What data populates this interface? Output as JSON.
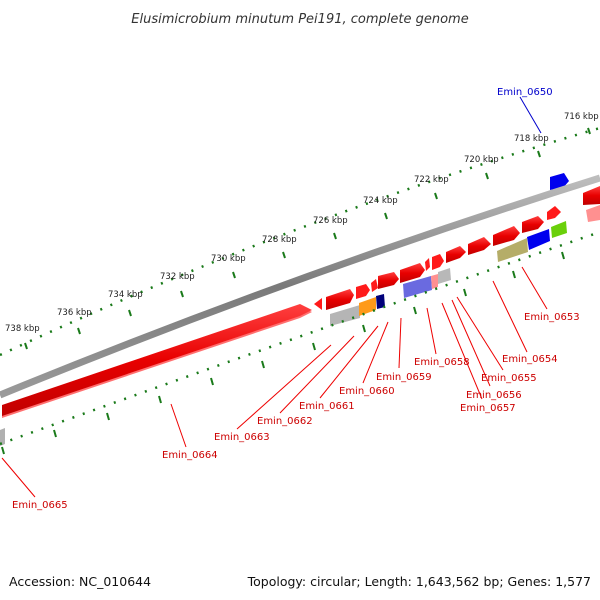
{
  "title": "Elusimicrobium minutum Pei191, complete genome",
  "footer": {
    "accession": "Accession: NC_010644",
    "topology": "Topology: circular; Length: 1,643,562 bp; Genes: 1,577"
  },
  "ticks": [
    "716 kbp",
    "718 kbp",
    "720 kbp",
    "722 kbp",
    "724 kbp",
    "726 kbp",
    "728 kbp",
    "730 kbp",
    "732 kbp",
    "734 kbp",
    "736 kbp",
    "738 kbp"
  ],
  "genes": {
    "emin_0650": "Emin_0650",
    "emin_0653": "Emin_0653",
    "emin_0654": "Emin_0654",
    "emin_0655": "Emin_0655",
    "emin_0656": "Emin_0656",
    "emin_0657": "Emin_0657",
    "emin_0658": "Emin_0658",
    "emin_0659": "Emin_0659",
    "emin_0660": "Emin_0660",
    "emin_0661": "Emin_0661",
    "emin_0662": "Emin_0662",
    "emin_0663": "Emin_0663",
    "emin_0664": "Emin_0664",
    "emin_0665": "Emin_0665"
  },
  "colors": {
    "forward": "#ff0000",
    "reverse_shadow": "#ff8080",
    "blue": "#0000ff",
    "olive": "#b5b06a",
    "orange": "#ff9a1a",
    "purple": "#7070d8",
    "gray": "#b0b0b0",
    "green": "#6ad00a",
    "tick": "#1a7a1a",
    "backbone": "#808080"
  }
}
